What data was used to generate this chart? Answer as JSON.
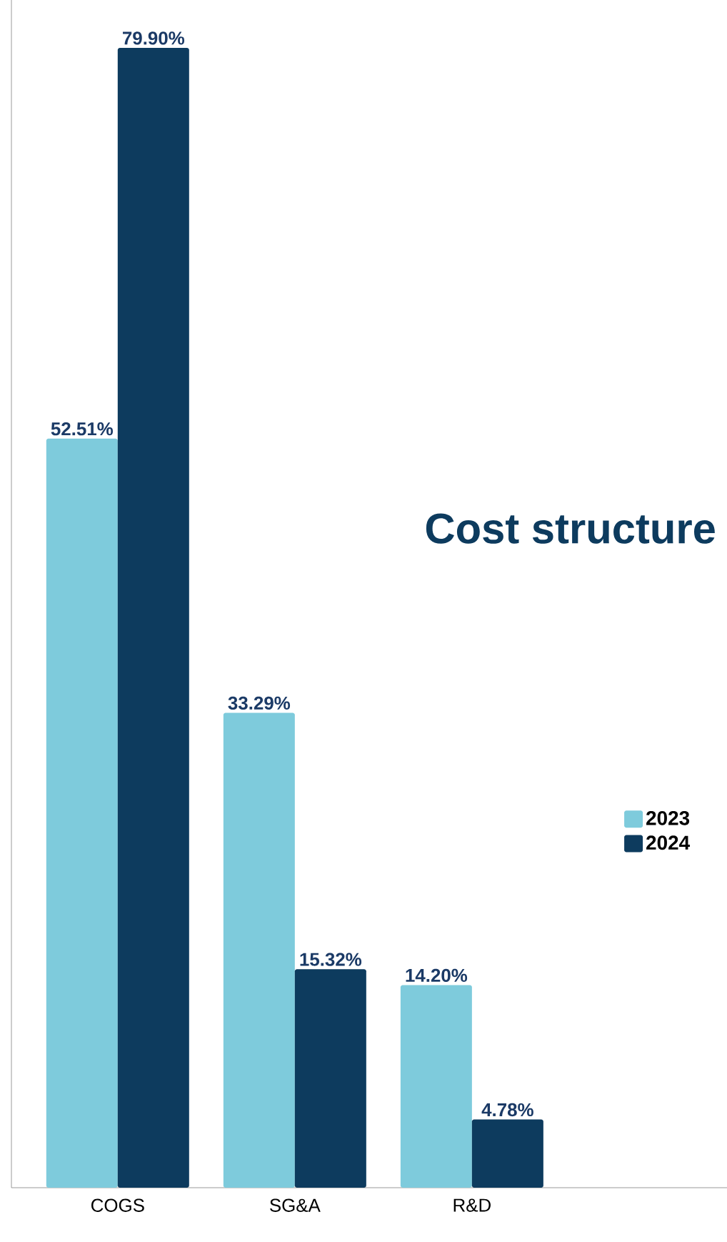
{
  "chart_data": {
    "type": "bar",
    "title": "Cost structure",
    "categories": [
      "COGS",
      "SG&A",
      "R&D"
    ],
    "series": [
      {
        "name": "2023",
        "color": "#7ecbdc",
        "values": [
          52.51,
          33.29,
          14.2
        ],
        "value_labels": [
          "52.51%",
          "33.29%",
          "14.20%"
        ]
      },
      {
        "name": "2024",
        "color": "#0d3b5e",
        "values": [
          79.9,
          15.32,
          4.78
        ],
        "value_labels": [
          "79.90%",
          "15.32%",
          "4.78%"
        ]
      }
    ],
    "legend": "right"
  }
}
